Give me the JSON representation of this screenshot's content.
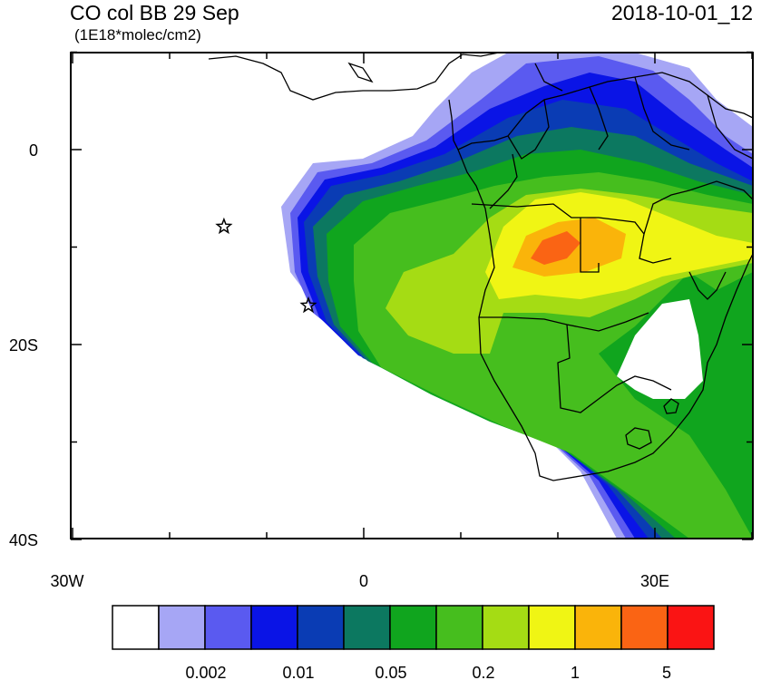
{
  "header": {
    "title": "CO col BB 29 Sep",
    "units": "(1E18*molec/cm2)",
    "timestamp": "2018-10-01_12"
  },
  "axes": {
    "y_tick_labels": [
      "0",
      "20S",
      "40S"
    ],
    "x_tick_labels": [
      "30W",
      "0",
      "30E"
    ]
  },
  "markers": [
    {
      "name": "star-marker",
      "shape": "star",
      "lon": -14.4,
      "lat": -7.9
    },
    {
      "name": "star-marker",
      "shape": "star",
      "lon": -5.7,
      "lat": -16.0
    }
  ],
  "colorbar": {
    "colors": [
      "#ffffff",
      "#a6a6f5",
      "#5a5af0",
      "#0a14e6",
      "#0a3cb4",
      "#0c7860",
      "#10a51e",
      "#46be1e",
      "#a5dc14",
      "#f0f514",
      "#fab40a",
      "#fa6414",
      "#fa1414"
    ],
    "tick_labels": [
      "0.002",
      "0.01",
      "0.05",
      "0.2",
      "1",
      "5"
    ]
  }
}
